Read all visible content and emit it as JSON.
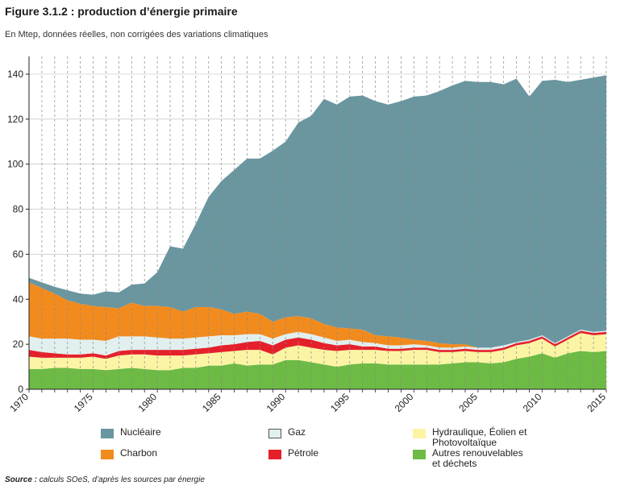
{
  "title": "Figure 3.1.2 : production d’énergie primaire",
  "subtitle": "En Mtep, données réelles, non corrigées des variations climatiques",
  "source_label": "Source :",
  "source_text": "calculs SOeS, d’après les sources par énergie",
  "chart_data": {
    "type": "area",
    "stacked": true,
    "x": [
      1970,
      1971,
      1972,
      1973,
      1974,
      1975,
      1976,
      1977,
      1978,
      1979,
      1980,
      1981,
      1982,
      1983,
      1984,
      1985,
      1986,
      1987,
      1988,
      1989,
      1990,
      1991,
      1992,
      1993,
      1994,
      1995,
      1996,
      1997,
      1998,
      1999,
      2000,
      2001,
      2002,
      2003,
      2004,
      2005,
      2006,
      2007,
      2008,
      2009,
      2010,
      2011,
      2012,
      2013,
      2014,
      2015
    ],
    "ylim": [
      0,
      140
    ],
    "yticks": [
      0,
      20,
      40,
      60,
      80,
      100,
      120,
      140
    ],
    "xticks": [
      1970,
      1975,
      1980,
      1985,
      1990,
      1995,
      2000,
      2005,
      2010,
      2015
    ],
    "grid": "vertical dashed per year",
    "series": [
      {
        "name": "Autres renouvelables et déchets",
        "color": "#6dbb45",
        "values": [
          9,
          9,
          9.5,
          9.5,
          9,
          9,
          8.5,
          9,
          9.5,
          9,
          8.5,
          8.5,
          9.5,
          9.5,
          10.5,
          10.5,
          11.5,
          10.5,
          11,
          11,
          13,
          13,
          12,
          11,
          10,
          11,
          11.5,
          11.5,
          11,
          11,
          11,
          11,
          11,
          11.5,
          12,
          12,
          11.5,
          12,
          13.5,
          14.5,
          16,
          14,
          16,
          17,
          16.5,
          17
        ]
      },
      {
        "name": "Hydraulique, Éolien et Photovoltaïque",
        "color": "#fbf4a4",
        "values": [
          5.5,
          5,
          4.5,
          4.5,
          5,
          5.5,
          5,
          6,
          6,
          6.5,
          6.5,
          6.5,
          5.5,
          6,
          5.5,
          6,
          5.5,
          7,
          6.5,
          4.5,
          5.5,
          6.5,
          6.5,
          6.5,
          7,
          6.5,
          6,
          6,
          6,
          6,
          6.5,
          6.5,
          5.5,
          5,
          5,
          4.5,
          5,
          5.5,
          6,
          6,
          6.5,
          5,
          6,
          8,
          7.5,
          7.5
        ]
      },
      {
        "name": "Pétrole",
        "color": "#e5202a",
        "values": [
          3,
          2.5,
          2,
          1.5,
          1.5,
          1.5,
          1.5,
          2,
          2,
          2,
          2.5,
          2.5,
          2.5,
          2.5,
          2.5,
          3,
          3,
          3.5,
          4,
          4,
          3.5,
          3.5,
          3.5,
          3,
          2.5,
          2.5,
          1.5,
          1.5,
          1,
          1,
          1,
          1,
          1,
          1,
          1,
          1,
          1,
          1,
          1,
          1,
          1,
          1,
          1,
          1,
          1,
          1
        ]
      },
      {
        "name": "Gaz",
        "color": "#e2efef",
        "values": [
          6,
          6,
          6.5,
          7,
          6.5,
          6,
          6.5,
          6.5,
          6,
          6,
          5.5,
          5,
          5,
          5,
          5,
          4.5,
          4,
          3.5,
          3,
          3,
          2.5,
          2.5,
          2.5,
          2.5,
          2,
          2,
          2,
          1.5,
          1.5,
          1.5,
          1.5,
          1,
          1,
          1,
          1,
          1,
          1,
          1,
          0.5,
          0.5,
          0.5,
          0.5,
          0.5,
          0.5,
          0.5,
          0.5
        ]
      },
      {
        "name": "Charbon",
        "color": "#f28b1e",
        "values": [
          24,
          22.5,
          20,
          17,
          16,
          15,
          15,
          12.5,
          15,
          13.5,
          14,
          14,
          12,
          13.5,
          13,
          11.5,
          9.5,
          10,
          9,
          7.5,
          7.5,
          7,
          7,
          6,
          6,
          5,
          5.5,
          3.5,
          4,
          3.5,
          2,
          2,
          2,
          1.5,
          1,
          0,
          0,
          0,
          0,
          0,
          0,
          0,
          0,
          0,
          0,
          0
        ]
      },
      {
        "name": "Nucléaire",
        "color": "#6a96a0",
        "values": [
          2,
          2.5,
          3,
          4.5,
          4.5,
          5,
          7,
          7,
          8,
          10,
          15,
          27,
          28,
          37,
          49,
          57,
          64,
          68,
          69,
          76,
          78,
          86,
          90,
          100,
          99,
          103,
          104,
          104,
          103,
          105,
          108,
          109,
          112,
          115,
          117,
          118,
          118,
          116,
          117,
          108,
          113,
          117,
          113,
          111,
          113,
          113.5
        ]
      }
    ],
    "legend": [
      {
        "label": "Nucléaire",
        "color": "#6a96a0"
      },
      {
        "label": "Gaz",
        "color": "#e2efef"
      },
      {
        "label": "Hydraulique, Éolien et Photovoltaïque",
        "color": "#fbf4a4"
      },
      {
        "label": "Charbon",
        "color": "#f28b1e"
      },
      {
        "label": "Pétrole",
        "color": "#e5202a"
      },
      {
        "label": "Autres renouvelables et déchets",
        "color": "#6dbb45"
      }
    ]
  }
}
